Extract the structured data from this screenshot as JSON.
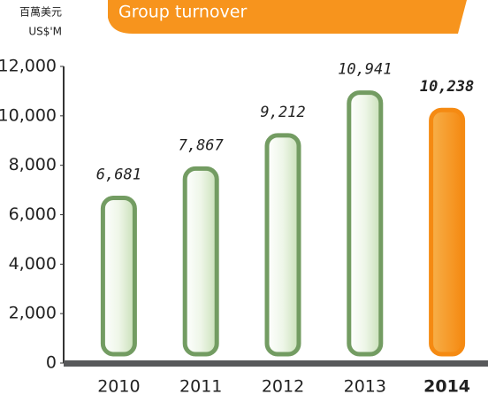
{
  "chart_data": {
    "type": "bar",
    "title": "Group turnover",
    "unit_labels": [
      "百萬美元",
      "US$'M"
    ],
    "categories": [
      "2010",
      "2011",
      "2012",
      "2013",
      "2014"
    ],
    "values": [
      6681,
      7867,
      9212,
      10941,
      10238
    ],
    "value_labels": [
      "6,681",
      "7,867",
      "9,212",
      "10,941",
      "10,238"
    ],
    "colors": [
      "#e4f0dc",
      "#e4f0dc",
      "#e4f0dc",
      "#e4f0dc",
      "#f7941d"
    ],
    "edge_colors": [
      "#739c62",
      "#739c62",
      "#739c62",
      "#739c62",
      "#f58a12"
    ],
    "ylim": [
      0,
      12000
    ],
    "yticks": [
      0,
      {
        "value": 2000,
        "label": "2,000"
      },
      {
        "value": 4000,
        "label": "4,000"
      },
      {
        "value": 6000,
        "label": "6,000"
      },
      {
        "value": 8000,
        "label": "8,000"
      },
      {
        "value": 10000,
        "label": "10,000"
      },
      {
        "value": 12000,
        "label": "12,000"
      }
    ]
  }
}
